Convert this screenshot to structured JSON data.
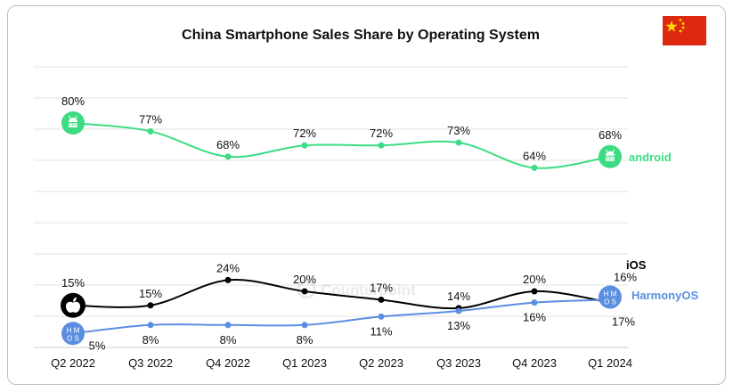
{
  "chart_data": {
    "type": "line",
    "title": "China Smartphone Sales Share by Operating System",
    "categories": [
      "Q2 2022",
      "Q3 2022",
      "Q4 2022",
      "Q1 2023",
      "Q2 2023",
      "Q3 2023",
      "Q4 2023",
      "Q1 2024"
    ],
    "series": [
      {
        "name": "android",
        "color": "#3ddc84",
        "values": [
          80,
          77,
          68,
          72,
          72,
          73,
          64,
          68
        ],
        "labels": [
          "80%",
          "77%",
          "68%",
          "72%",
          "72%",
          "73%",
          "64%",
          "68%"
        ]
      },
      {
        "name": "iOS",
        "color": "#000000",
        "values": [
          15,
          15,
          24,
          20,
          17,
          14,
          20,
          16
        ],
        "labels": [
          "15%",
          "15%",
          "24%",
          "20%",
          "17%",
          "14%",
          "20%",
          "16%"
        ]
      },
      {
        "name": "HarmonyOS",
        "color": "#5b8ee0",
        "values": [
          5,
          8,
          8,
          8,
          11,
          13,
          16,
          17
        ],
        "labels": [
          "5%",
          "8%",
          "8%",
          "8%",
          "11%",
          "13%",
          "16%",
          "17%"
        ]
      }
    ],
    "ylim": [
      0,
      100
    ],
    "grid": true,
    "legend": "inline-right",
    "icons": {
      "android": "android-icon",
      "ios": "apple-icon",
      "harmony": "hmos-icon",
      "flag": "china-flag-icon"
    },
    "icon_text": {
      "android": "android",
      "hmos_top": "H M",
      "hmos_bottom": "O S"
    },
    "watermark": "Counterpoint"
  }
}
